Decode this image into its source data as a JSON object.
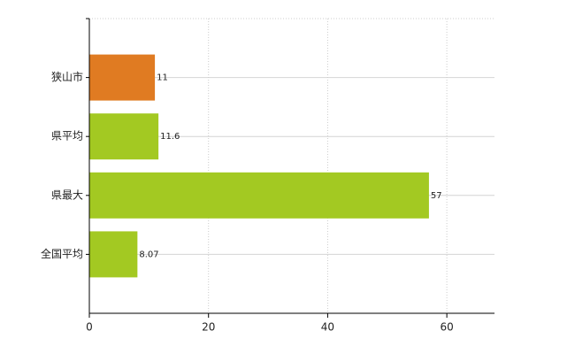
{
  "chart_data": {
    "type": "bar",
    "orientation": "horizontal",
    "categories": [
      "狭山市",
      "県平均",
      "県最大",
      "全国平均"
    ],
    "values": [
      11,
      11.6,
      57,
      8.07
    ],
    "colors": [
      "#e07b22",
      "#a3c922",
      "#a3c922",
      "#a3c922"
    ],
    "xlim": [
      0,
      68
    ],
    "xticks": [
      0,
      20,
      40,
      60
    ],
    "grid": true
  }
}
